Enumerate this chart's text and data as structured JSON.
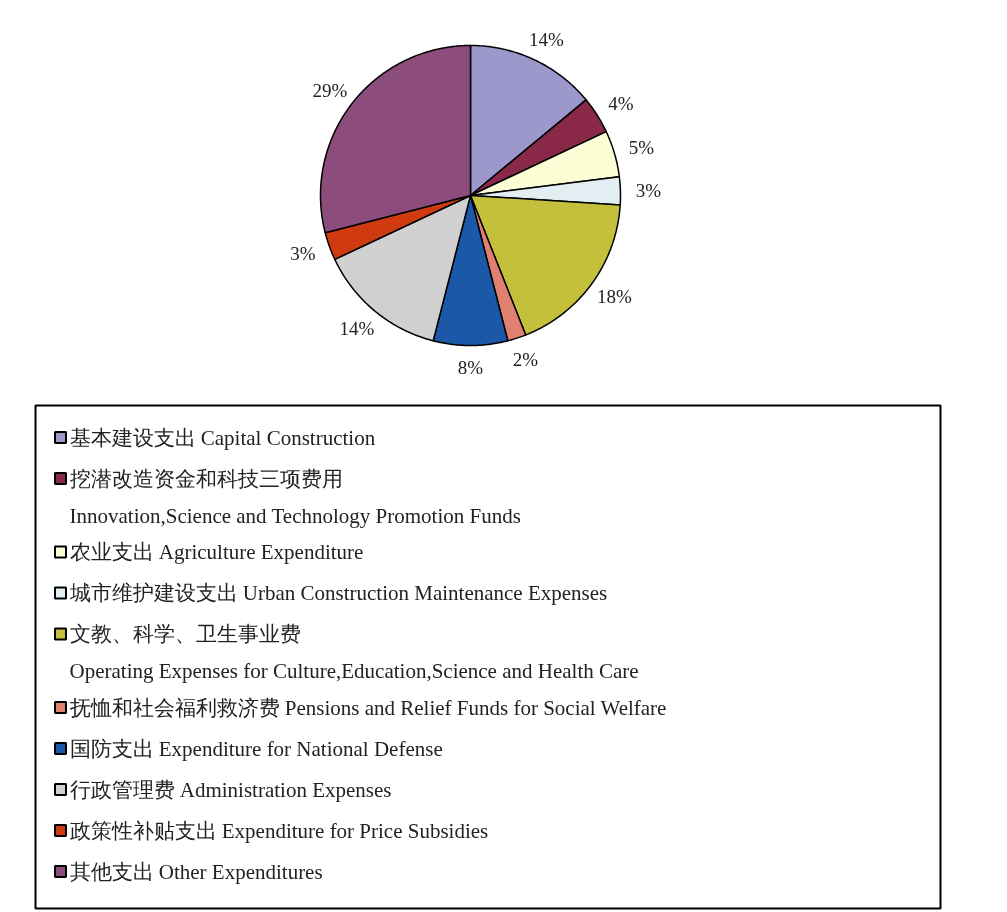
{
  "chart_data": {
    "type": "pie",
    "categories": [
      "基本建设支出 Capital Construction",
      "挖潜改造资金和科技三项费用\nInnovation,Science and Technology Promotion Funds",
      "农业支出 Agriculture Expenditure",
      "城市维护建设支出 Urban Construction Maintenance Expenses",
      "文教、科学、卫生事业费\nOperating Expenses for Culture,Education,Science and Health Care",
      "抚恤和社会福利救济费 Pensions and Relief Funds for Social Welfare",
      "国防支出 Expenditure for National Defense",
      "行政管理费 Administration Expenses",
      "政策性补贴支出 Expenditure for Price Subsidies",
      "其他支出 Other Expenditures"
    ],
    "values": [
      14,
      4,
      5,
      3,
      18,
      2,
      8,
      14,
      3,
      29
    ],
    "colors": [
      "#9d98cc",
      "#8a2848",
      "#fdfdd6",
      "#e2eef2",
      "#c4c03c",
      "#e08070",
      "#1c58a8",
      "#d0d0d0",
      "#d03a10",
      "#8c4c7c"
    ],
    "value_labels": [
      "14%",
      "4%",
      "5%",
      "3%",
      "18%",
      "2%",
      "8%",
      "14%",
      "3%",
      "29%"
    ],
    "legend": "bottom"
  }
}
